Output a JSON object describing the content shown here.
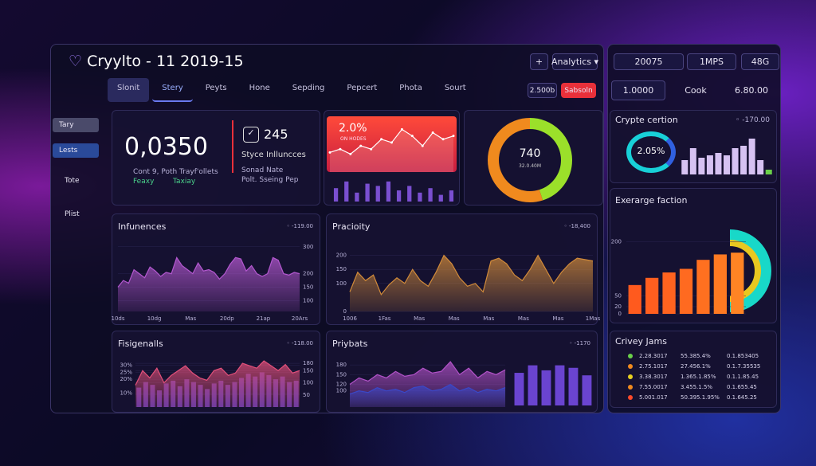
{
  "header": {
    "title": "Cryylto - 11 2019-15",
    "plus": "+",
    "menu": "Analytics",
    "chips": [
      "20075",
      "1MPS",
      "48G"
    ],
    "chips2": [
      "1.0000",
      "Cook",
      "6.80.00"
    ]
  },
  "nav": {
    "tabs": [
      "Slonit",
      "Stery",
      "Peyts",
      "Hone",
      "Sepding",
      "Pepcert",
      "Phota",
      "Sourt"
    ],
    "value": "2.500b",
    "action": "Sabsoln"
  },
  "sidebar": {
    "items": [
      "Tary",
      "Lests",
      "Tote",
      "Plist"
    ]
  },
  "kpi": {
    "value": "0,0350",
    "caption": "Cont 9, Poth Trayf'ollets",
    "tag1": "Feaxy",
    "tag2": "Taxiay",
    "count": "245",
    "count_label": "Styce Inlluncces",
    "note1": "Sonad Nate",
    "note2": "Polt. Sseing Pep"
  },
  "spark": {
    "label": "2.0%",
    "sub": "ON HODES",
    "color": "#ffffff",
    "ylim": [
      0,
      15
    ],
    "values": [
      5,
      6,
      4.5,
      7,
      6,
      9,
      8,
      12,
      10,
      7,
      11,
      9,
      10
    ],
    "bars": {
      "color": "#7a4fd0",
      "ylim": [
        0,
        10
      ],
      "values": [
        6,
        9,
        4,
        8,
        7,
        9,
        5,
        7,
        4,
        6,
        3,
        5
      ]
    }
  },
  "donut": {
    "value": "740",
    "sub": "32.0.40M",
    "values": [
      45,
      55
    ],
    "colors": [
      "#9be02a",
      "#f08a1e"
    ]
  },
  "crypte": {
    "title": "Crypte certion",
    "badge": "-170.00",
    "ring": "2.05%",
    "ylim": [
      0,
      32
    ],
    "values": [
      12,
      22,
      14,
      16,
      18,
      16,
      22,
      24,
      30,
      12,
      4
    ],
    "colors": [
      "#d6c2f2",
      "#d6c2f2",
      "#d6c2f2",
      "#d6c2f2",
      "#d6c2f2",
      "#d6c2f2",
      "#d6c2f2",
      "#d6c2f2",
      "#d6c2f2",
      "#d6c2f2",
      "#6ad04a"
    ]
  },
  "exchange": {
    "title": "Exerarge faction",
    "ylim": [
      0,
      250
    ],
    "yticks": [
      0,
      20,
      50,
      200
    ],
    "values": [
      80,
      100,
      115,
      125,
      150,
      165,
      170
    ],
    "colors": [
      "#ff5a1e",
      "#ff5e1f",
      "#ff631f",
      "#ff6a20",
      "#ff7020",
      "#ff7a22",
      "#ff8424"
    ]
  },
  "panels": [
    {
      "title": "Infunences",
      "badge": "-119.00",
      "axis_side": "right",
      "ylim": [
        60,
        320
      ],
      "yticks": [
        100,
        150,
        200,
        300
      ],
      "xlabels": [
        "10ds",
        "10dg",
        "Mas",
        "20dp",
        "21ap",
        "20Ars"
      ],
      "series": [
        {
          "type": "area",
          "color": "#b458d0",
          "values": [
            150,
            175,
            165,
            215,
            200,
            185,
            225,
            210,
            190,
            205,
            200,
            260,
            230,
            215,
            200,
            240,
            210,
            215,
            205,
            180,
            200,
            235,
            260,
            255,
            210,
            230,
            200,
            190,
            200,
            260,
            250,
            200,
            195,
            205,
            200
          ]
        }
      ]
    },
    {
      "title": "Pracioity",
      "badge": "-18,400",
      "axis_side": "left",
      "ylim": [
        0,
        250
      ],
      "yticks": [
        0,
        100,
        150,
        200
      ],
      "xlabels": [
        "1006",
        "1Fas",
        "Mas",
        "Mas",
        "Mas",
        "Mas",
        "Mas",
        "1Mas"
      ],
      "series": [
        {
          "type": "area",
          "color": "#d08a3a",
          "values": [
            70,
            140,
            110,
            130,
            60,
            95,
            120,
            100,
            150,
            110,
            90,
            140,
            200,
            170,
            120,
            90,
            100,
            70,
            180,
            190,
            170,
            130,
            110,
            150,
            200,
            150,
            100,
            140,
            170,
            190,
            185,
            180
          ]
        }
      ]
    },
    {
      "title": "Fisigenalls",
      "badge": "-118.00",
      "axis_side": "left",
      "ylim": [
        0,
        35
      ],
      "yticks": [
        {
          "value": 10,
          "label": "10%"
        },
        {
          "value": 20,
          "label": "20%"
        },
        {
          "value": 25,
          "label": "25%"
        },
        {
          "value": 30,
          "label": "30%"
        }
      ],
      "y2lim": [
        0,
        200
      ],
      "y2ticks": [
        50,
        100,
        150,
        180
      ],
      "series": [
        {
          "type": "bar",
          "color": "#6a3fb8",
          "values": [
            14,
            18,
            16,
            12,
            17,
            19,
            15,
            20,
            18,
            16,
            13,
            17,
            19,
            16,
            18,
            21,
            24,
            22,
            25,
            23,
            20,
            22,
            18,
            19
          ]
        },
        {
          "type": "area",
          "axis": "y2",
          "color": "#e2507a",
          "values": [
            90,
            150,
            120,
            160,
            100,
            130,
            150,
            170,
            140,
            120,
            110,
            150,
            160,
            130,
            140,
            180,
            170,
            160,
            190,
            170,
            150,
            175,
            140,
            150
          ]
        }
      ]
    },
    {
      "title": "Priybats",
      "badge": "-1170",
      "axis_side": "left",
      "ylim": [
        50,
        200
      ],
      "yticks": [
        100,
        120,
        150,
        180
      ],
      "series": [
        {
          "type": "area",
          "color": "#b252c8",
          "values": [
            120,
            140,
            130,
            150,
            140,
            160,
            145,
            150,
            170,
            155,
            160,
            190,
            150,
            170,
            140,
            160,
            150,
            165
          ]
        },
        {
          "type": "area",
          "color": "#3a48c8",
          "values": [
            90,
            100,
            95,
            110,
            100,
            105,
            95,
            110,
            115,
            100,
            105,
            120,
            100,
            110,
            95,
            105,
            100,
            110
          ]
        }
      ],
      "bars": {
        "color": "#6a44d0",
        "ylim": [
          0,
          10
        ],
        "values": [
          6.5,
          8,
          7,
          8,
          7.5,
          6
        ]
      }
    }
  ],
  "table": {
    "title": "Crivey Jams",
    "colors": [
      "#6ad04a",
      "#f08a1e",
      "#e8d020",
      "#f08a1e",
      "#ff4a2a"
    ],
    "rows": [
      [
        "2.28.3017",
        "55.385.4%",
        "0.1.853405"
      ],
      [
        "2.75.1017",
        "27.456.1%",
        "0.1.7.35535"
      ],
      [
        "3.38.3017",
        "1.365.1.85%",
        "0.1.1.85.45"
      ],
      [
        "7.55.0017",
        "3.455.1.5%",
        "0.1.655.45"
      ],
      [
        "5.001.017",
        "50.395.1.95%",
        "0.1.645.25"
      ]
    ]
  }
}
